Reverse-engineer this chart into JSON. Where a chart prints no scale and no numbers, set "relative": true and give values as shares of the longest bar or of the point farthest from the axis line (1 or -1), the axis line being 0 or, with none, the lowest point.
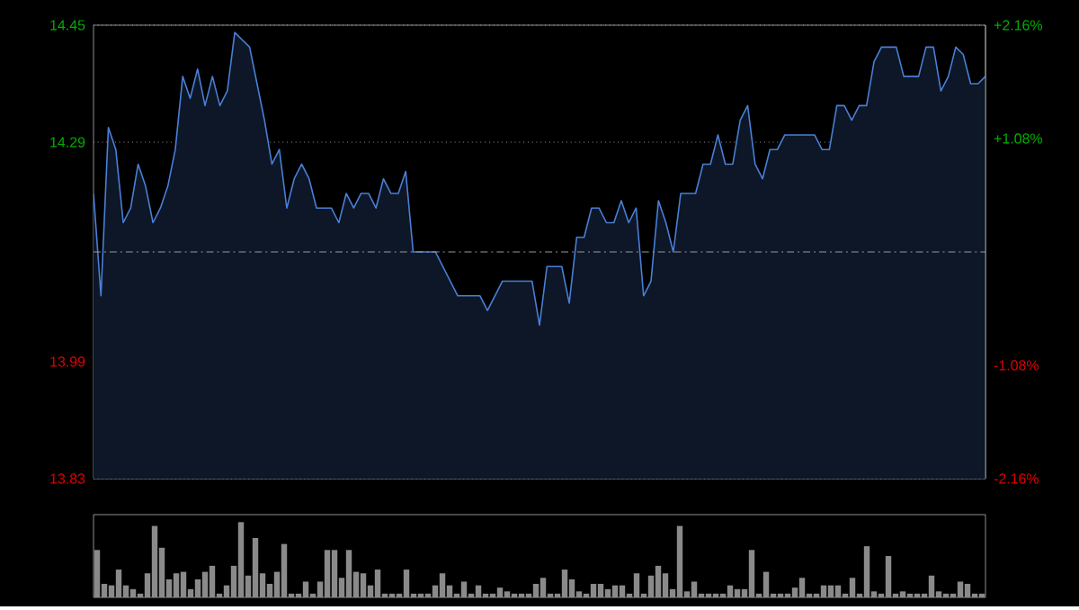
{
  "chart_data": [
    {
      "type": "area",
      "color": "#4a7fd6",
      "categories": [
        null,
        null,
        null,
        null,
        null,
        null,
        null,
        null,
        null,
        null,
        null,
        null,
        null,
        null,
        null,
        null,
        null,
        null,
        null,
        null,
        null,
        null,
        null,
        null,
        null,
        null,
        null,
        null,
        null,
        null,
        null,
        null,
        null,
        null,
        null,
        null,
        null,
        null,
        null,
        null,
        null,
        null,
        null,
        null,
        null,
        null,
        null,
        null,
        null,
        null,
        null,
        null,
        null,
        null,
        null,
        null,
        null,
        null,
        null,
        null,
        null,
        null,
        null,
        null,
        null,
        null,
        null,
        null,
        null,
        null,
        null,
        null,
        null,
        null,
        null,
        null,
        null,
        null,
        null,
        null,
        null,
        null,
        null,
        null,
        null,
        null,
        null,
        null,
        null,
        null,
        null,
        null,
        null,
        null,
        null,
        null,
        null,
        null,
        null,
        null,
        null,
        null,
        null,
        null,
        null,
        null,
        null,
        null,
        null,
        null,
        null,
        null,
        null,
        null,
        null,
        null,
        null,
        null,
        null,
        null,
        null
      ],
      "values": [
        14.22,
        14.08,
        14.31,
        14.28,
        14.18,
        14.2,
        14.26,
        14.23,
        14.18,
        14.2,
        14.23,
        14.28,
        14.38,
        14.35,
        14.39,
        14.34,
        14.38,
        14.34,
        14.36,
        14.44,
        14.43,
        14.42,
        14.37,
        14.32,
        14.26,
        14.28,
        14.2,
        14.24,
        14.26,
        14.24,
        14.2,
        14.2,
        14.2,
        14.18,
        14.22,
        14.2,
        14.22,
        14.22,
        14.2,
        14.24,
        14.22,
        14.22,
        14.25,
        14.14,
        14.14,
        14.14,
        14.14,
        14.12,
        14.1,
        14.08,
        14.08,
        14.08,
        14.08,
        14.06,
        14.08,
        14.1,
        14.1,
        14.1,
        14.1,
        14.1,
        14.04,
        14.12,
        14.12,
        14.12,
        14.07,
        14.16,
        14.16,
        14.2,
        14.2,
        14.18,
        14.18,
        14.21,
        14.18,
        14.2,
        14.08,
        14.1,
        14.21,
        14.18,
        14.14,
        14.22,
        14.22,
        14.22,
        14.26,
        14.26,
        14.3,
        14.26,
        14.26,
        14.32,
        14.34,
        14.26,
        14.24,
        14.28,
        14.28,
        14.3,
        14.3,
        14.3,
        14.3,
        14.3,
        14.28,
        14.28,
        14.34,
        14.34,
        14.32,
        14.34,
        14.34,
        14.4,
        14.42,
        14.42,
        14.42,
        14.38,
        14.38,
        14.38,
        14.42,
        14.42,
        14.36,
        14.38,
        14.42,
        14.41,
        14.37,
        14.37,
        14.38
      ],
      "ylim": [
        13.83,
        14.45
      ],
      "yticks": [
        14.45,
        14.29,
        13.99,
        13.83
      ],
      "y2lim": [
        -2.16,
        2.16
      ],
      "y2ticks": [
        {
          "value": 2.16,
          "label": "+2.16%"
        },
        {
          "value": 1.08,
          "label": "+1.08%"
        },
        {
          "value": -1.08,
          "label": "-1.08%"
        },
        {
          "value": -2.16,
          "label": "-2.16%"
        }
      ],
      "grid": "y",
      "tick_labels": "y",
      "ref_lines": [
        {
          "axis": "y",
          "value": 14.14,
          "line_style": "dashed"
        }
      ]
    },
    {
      "type": "bar",
      "color": "#8a8a8a",
      "relative": true,
      "tick_labels": false,
      "categories": [
        null,
        null,
        null,
        null,
        null,
        null,
        null,
        null,
        null,
        null,
        null,
        null,
        null,
        null,
        null,
        null,
        null,
        null,
        null,
        null,
        null,
        null,
        null,
        null,
        null,
        null,
        null,
        null,
        null,
        null,
        null,
        null,
        null,
        null,
        null,
        null,
        null,
        null,
        null,
        null,
        null,
        null,
        null,
        null,
        null,
        null,
        null,
        null,
        null,
        null,
        null,
        null,
        null,
        null,
        null,
        null,
        null,
        null,
        null,
        null,
        null,
        null,
        null,
        null,
        null,
        null,
        null,
        null,
        null,
        null,
        null,
        null,
        null,
        null,
        null,
        null,
        null,
        null,
        null,
        null,
        null,
        null,
        null,
        null,
        null,
        null,
        null,
        null,
        null,
        null,
        null,
        null,
        null,
        null,
        null,
        null,
        null,
        null,
        null,
        null,
        null,
        null,
        null,
        null,
        null,
        null,
        null,
        null,
        null,
        null,
        null,
        null,
        null,
        null,
        null,
        null,
        null,
        null,
        null,
        null,
        null,
        null,
        null,
        null
      ],
      "values": [
        0.63,
        0.18,
        0.16,
        0.37,
        0.16,
        0.11,
        0.05,
        0.32,
        0.95,
        0.66,
        0.24,
        0.32,
        0.34,
        0.11,
        0.24,
        0.34,
        0.42,
        0.05,
        0.16,
        0.42,
        1,
        0.29,
        0.79,
        0.32,
        0.18,
        0.34,
        0.71,
        0.05,
        0.05,
        0.21,
        0.05,
        0.21,
        0.63,
        0.63,
        0.26,
        0.63,
        0.34,
        0.32,
        0.16,
        0.37,
        0.05,
        0.05,
        0.05,
        0.37,
        0.05,
        0.05,
        0.05,
        0.16,
        0.32,
        0.16,
        0.05,
        0.21,
        0.05,
        0.16,
        0.05,
        0.05,
        0.13,
        0.08,
        0.05,
        0.05,
        0.05,
        0.18,
        0.26,
        0.05,
        0.05,
        0.37,
        0.24,
        0.08,
        0.05,
        0.18,
        0.18,
        0.11,
        0.16,
        0.16,
        0.05,
        0.32,
        0.05,
        0.29,
        0.42,
        0.32,
        0.11,
        0.95,
        0.08,
        0.21,
        0.05,
        0.05,
        0.05,
        0.05,
        0.16,
        0.11,
        0.11,
        0.63,
        0.05,
        0.34,
        0.05,
        0.05,
        0.05,
        0.13,
        0.26,
        0.05,
        0.05,
        0.16,
        0.16,
        0.16,
        0.05,
        0.26,
        0.05,
        0.68,
        0.08,
        0.05,
        0.55,
        0.05,
        0.08,
        0.05,
        0.05,
        0.05,
        0.29,
        0.08,
        0.05,
        0.05,
        0.21,
        0.18,
        0.05,
        0.05
      ]
    }
  ]
}
